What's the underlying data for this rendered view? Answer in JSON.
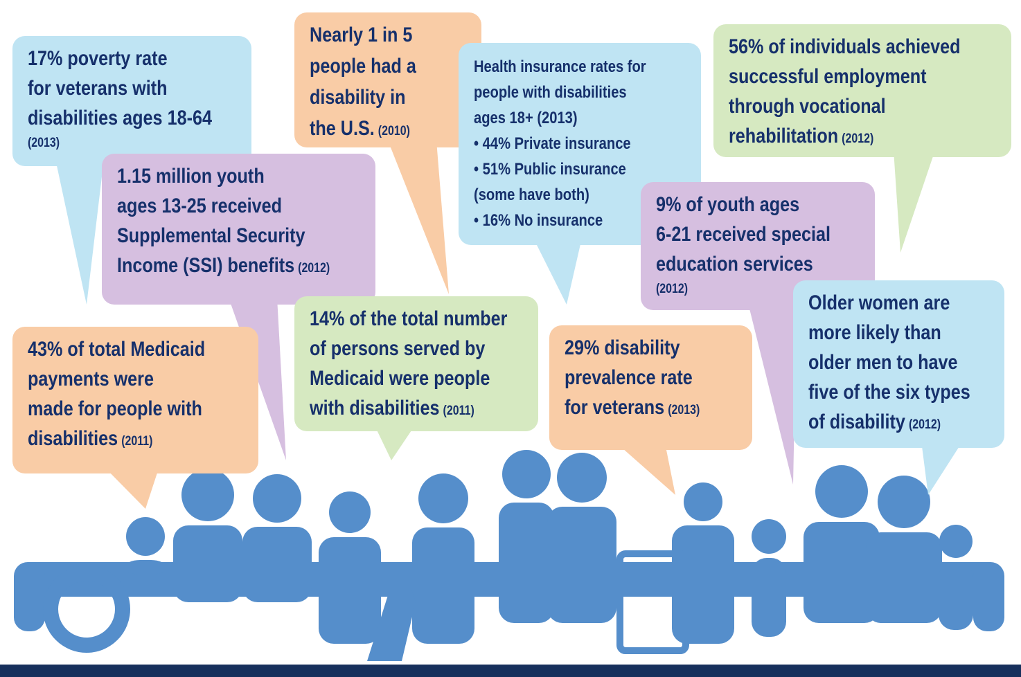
{
  "bubbles": [
    {
      "lines": [
        "17% poverty rate",
        "for veterans with",
        "disabilities ages 18-64"
      ],
      "year": "(2013)"
    },
    {
      "lines": [
        "Nearly 1 in 5",
        "people had a",
        "disability in",
        "the U.S."
      ],
      "year": "(2010)"
    },
    {
      "lines": [
        "Health insurance rates for",
        "people with disabilities",
        "ages 18+ (2013)",
        "• 44% Private insurance",
        "• 51% Public insurance",
        "(some have both)",
        "• 16% No insurance"
      ]
    },
    {
      "lines": [
        "56% of individuals achieved",
        "successful employment",
        "through vocational",
        "rehabilitation"
      ],
      "year": "(2012)"
    },
    {
      "lines": [
        "1.15 million youth",
        "ages 13-25 received",
        "Supplemental Security",
        "Income (SSI) benefits"
      ],
      "year": "(2012)"
    },
    {
      "lines": [
        "9% of youth ages",
        "6-21 received special",
        "education services"
      ],
      "year": "(2012)"
    },
    {
      "lines": [
        "14% of the total number",
        "of persons served by",
        "Medicaid were people",
        "with disabilities"
      ],
      "year": "(2011)"
    },
    {
      "lines": [
        "43% of total Medicaid",
        "payments were",
        "made for people with",
        "disabilities"
      ],
      "year": "(2011)"
    },
    {
      "lines": [
        "29% disability",
        "prevalence rate",
        "for veterans"
      ],
      "year": "(2013)"
    },
    {
      "lines": [
        "Older women are",
        "more likely than",
        "older men to have",
        "five of the six types",
        "of disability"
      ],
      "year": "(2012)"
    }
  ]
}
